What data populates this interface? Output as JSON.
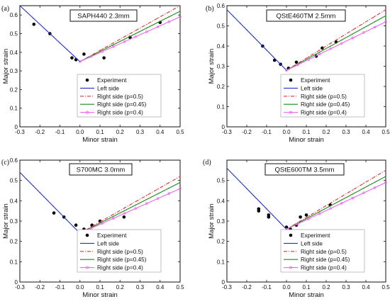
{
  "figure": {
    "panels": [
      {
        "panel_label": "(a)",
        "title": "SAPH440 2.3mm"
      },
      {
        "panel_label": "(b)",
        "title": "QStE460TM 2.5mm"
      },
      {
        "panel_label": "(c)",
        "title": "S700MC 3.0mm"
      },
      {
        "panel_label": "(d)",
        "title": "QStE600TM 3.5mm"
      }
    ]
  },
  "colors": {
    "experiment": "#000000",
    "left_side": "#2233cc",
    "right_p05": "#e03030",
    "right_p045": "#1a8a1a",
    "right_p04": "#ee66ee"
  },
  "chart_data": [
    {
      "type": "line",
      "title": "SAPH440 2.3mm",
      "xlabel": "Minor strain",
      "ylabel": "Major strain",
      "xlim": [
        -0.3,
        0.5
      ],
      "ylim": [
        0,
        0.65
      ],
      "xticks": [
        "-0.3",
        "-0.2",
        "-0.1",
        "0.0",
        "0.1",
        "0.2",
        "0.3",
        "0.4",
        "0.5"
      ],
      "yticks": [
        "0",
        "0.1",
        "0.2",
        "0.3",
        "0.4",
        "0.5",
        "0.6"
      ],
      "legend": [
        "Experiment",
        "Left side",
        "Right side (p=0.5)",
        "Right side (p=0.45)",
        "Right side (p=0.4)"
      ],
      "series": [
        {
          "name": "Experiment",
          "x": [
            -0.23,
            -0.15,
            -0.04,
            -0.02,
            0.02,
            0.12,
            0.25,
            0.4
          ],
          "y": [
            0.55,
            0.5,
            0.37,
            0.36,
            0.39,
            0.37,
            0.48,
            0.56
          ]
        },
        {
          "name": "Left side",
          "x": [
            -0.3,
            0.0
          ],
          "y": [
            0.65,
            0.35
          ]
        },
        {
          "name": "Right side (p=0.5)",
          "x": [
            0.0,
            0.5
          ],
          "y": [
            0.35,
            0.65
          ]
        },
        {
          "name": "Right side (p=0.45)",
          "x": [
            0.0,
            0.5
          ],
          "y": [
            0.35,
            0.62
          ]
        },
        {
          "name": "Right side (p=0.4)",
          "x": [
            0.0,
            0.5
          ],
          "y": [
            0.35,
            0.59
          ]
        }
      ]
    },
    {
      "type": "line",
      "title": "QStE460TM 2.5mm",
      "xlabel": "Minor strain",
      "ylabel": "Major strain",
      "xlim": [
        -0.3,
        0.5
      ],
      "ylim": [
        0,
        0.6
      ],
      "xticks": [
        "-0.3",
        "-0.2",
        "-0.1",
        "0.0",
        "0.1",
        "0.2",
        "0.3",
        "0.4",
        "0.5"
      ],
      "yticks": [
        "0",
        "0.1",
        "0.2",
        "0.3",
        "0.4",
        "0.5",
        "0.6"
      ],
      "legend": [
        "Experiment",
        "Left side",
        "Right side (p=0.5)",
        "Right side (p=0.45)",
        "Right side (p=0.4)"
      ],
      "series": [
        {
          "name": "Experiment",
          "x": [
            -0.12,
            -0.06,
            -0.03,
            0.01,
            0.05,
            0.15,
            0.18,
            0.25
          ],
          "y": [
            0.4,
            0.33,
            0.31,
            0.29,
            0.32,
            0.35,
            0.39,
            0.42
          ]
        },
        {
          "name": "Left side",
          "x": [
            -0.3,
            0.0
          ],
          "y": [
            0.58,
            0.28
          ]
        },
        {
          "name": "Right side (p=0.5)",
          "x": [
            0.0,
            0.5
          ],
          "y": [
            0.28,
            0.58
          ]
        },
        {
          "name": "Right side (p=0.45)",
          "x": [
            0.0,
            0.5
          ],
          "y": [
            0.28,
            0.55
          ]
        },
        {
          "name": "Right side (p=0.4)",
          "x": [
            0.0,
            0.5
          ],
          "y": [
            0.28,
            0.52
          ]
        }
      ]
    },
    {
      "type": "line",
      "title": "S700MC 3.0mm",
      "xlabel": "Minor strain",
      "ylabel": "Major strain",
      "xlim": [
        -0.3,
        0.5
      ],
      "ylim": [
        0,
        0.6
      ],
      "xticks": [
        "-0.3",
        "-0.2",
        "-0.1",
        "0.0",
        "0.1",
        "0.2",
        "0.3",
        "0.4",
        "0.5"
      ],
      "yticks": [
        "0",
        "0.1",
        "0.2",
        "0.3",
        "0.4",
        "0.5",
        "0.6"
      ],
      "legend": [
        "Experiment",
        "Left side",
        "Right side (p=0.5)",
        "Right side (p=0.45)",
        "Right side (p=0.4)"
      ],
      "series": [
        {
          "name": "Experiment",
          "x": [
            -0.13,
            -0.08,
            -0.02,
            0.0,
            0.02,
            0.06,
            0.1,
            0.22
          ],
          "y": [
            0.34,
            0.32,
            0.28,
            0.25,
            0.26,
            0.28,
            0.3,
            0.32
          ]
        },
        {
          "name": "Left side",
          "x": [
            -0.3,
            0.0
          ],
          "y": [
            0.54,
            0.24
          ]
        },
        {
          "name": "Right side (p=0.5)",
          "x": [
            0.0,
            0.5
          ],
          "y": [
            0.24,
            0.52
          ]
        },
        {
          "name": "Right side (p=0.45)",
          "x": [
            0.0,
            0.5
          ],
          "y": [
            0.24,
            0.49
          ]
        },
        {
          "name": "Right side (p=0.4)",
          "x": [
            0.0,
            0.5
          ],
          "y": [
            0.24,
            0.46
          ]
        }
      ]
    },
    {
      "type": "line",
      "title": "QStE600TM 3.5mm",
      "xlabel": "Minor strain",
      "ylabel": "Major strain",
      "xlim": [
        -0.3,
        0.5
      ],
      "ylim": [
        0,
        0.6
      ],
      "xticks": [
        "-0.3",
        "-0.2",
        "-0.1",
        "0.0",
        "0.1",
        "0.2",
        "0.3",
        "0.4",
        "0.5"
      ],
      "yticks": [
        "0",
        "0.1",
        "0.2",
        "0.3",
        "0.4",
        "0.5"
      ],
      "legend": [
        "Experiment",
        "Left side",
        "Right side (p=0.5)",
        "Right side (p=0.45)",
        "Right side (p=0.4)"
      ],
      "series": [
        {
          "name": "Experiment",
          "x": [
            -0.14,
            -0.14,
            -0.09,
            -0.09,
            0.0,
            0.02,
            0.05,
            0.07,
            0.1,
            0.22
          ],
          "y": [
            0.36,
            0.35,
            0.33,
            0.32,
            0.27,
            0.26,
            0.28,
            0.32,
            0.33,
            0.38
          ]
        },
        {
          "name": "Left side",
          "x": [
            -0.3,
            0.0
          ],
          "y": [
            0.56,
            0.26
          ]
        },
        {
          "name": "Right side (p=0.5)",
          "x": [
            0.0,
            0.5
          ],
          "y": [
            0.26,
            0.55
          ]
        },
        {
          "name": "Right side (p=0.45)",
          "x": [
            0.0,
            0.5
          ],
          "y": [
            0.26,
            0.52
          ]
        },
        {
          "name": "Right side (p=0.4)",
          "x": [
            0.0,
            0.5
          ],
          "y": [
            0.26,
            0.49
          ]
        }
      ]
    }
  ]
}
